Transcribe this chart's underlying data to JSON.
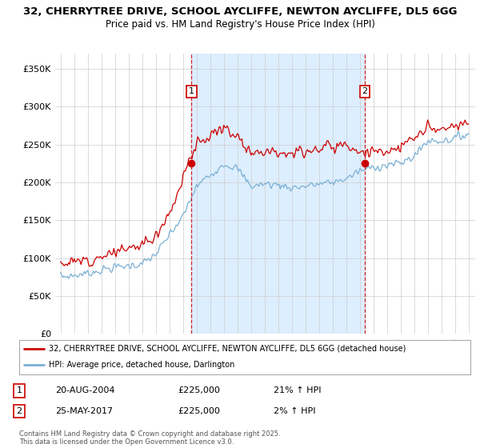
{
  "title_line1": "32, CHERRYTREE DRIVE, SCHOOL AYCLIFFE, NEWTON AYCLIFFE, DL5 6GG",
  "title_line2": "Price paid vs. HM Land Registry's House Price Index (HPI)",
  "bg_color": "#ffffff",
  "plot_bg_color": "#ffffff",
  "shade_color": "#ddeeff",
  "legend_label1": "32, CHERRYTREE DRIVE, SCHOOL AYCLIFFE, NEWTON AYCLIFFE, DL5 6GG (detached house)",
  "legend_label2": "HPI: Average price, detached house, Darlington",
  "sale1_date": "20-AUG-2004",
  "sale1_price": "£225,000",
  "sale1_hpi": "21% ↑ HPI",
  "sale1_year": 2004.63,
  "sale2_date": "25-MAY-2017",
  "sale2_price": "£225,000",
  "sale2_hpi": "2% ↑ HPI",
  "sale2_year": 2017.38,
  "footer": "Contains HM Land Registry data © Crown copyright and database right 2025.\nThis data is licensed under the Open Government Licence v3.0.",
  "ylim": [
    0,
    370000
  ],
  "yticks": [
    0,
    50000,
    100000,
    150000,
    200000,
    250000,
    300000,
    350000
  ],
  "ytick_labels": [
    "£0",
    "£50K",
    "£100K",
    "£150K",
    "£200K",
    "£250K",
    "£300K",
    "£350K"
  ],
  "line1_color": "#cc0000",
  "line2_color": "#7ab0d4",
  "vline_color": "#cc0000",
  "grid_color": "#cccccc",
  "num_box_color": "#cc0000",
  "sale_marker_color": "#cc0000"
}
